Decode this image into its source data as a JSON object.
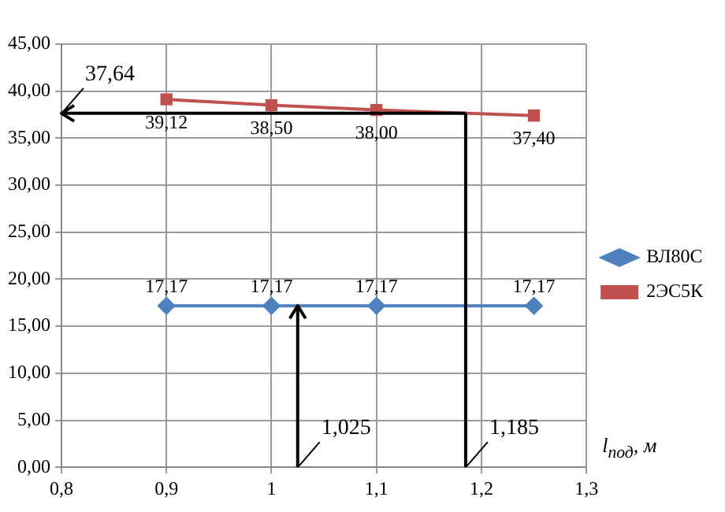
{
  "chart_data": {
    "type": "line",
    "xlabel": "l$_{под}$, м",
    "xlim": [
      0.8,
      1.3
    ],
    "xticks": [
      {
        "value": 0.8,
        "label": "0,8"
      },
      {
        "value": 0.9,
        "label": "0,9"
      },
      {
        "value": 1,
        "label": "1"
      },
      {
        "value": 1.1,
        "label": "1,1"
      },
      {
        "value": 1.2,
        "label": "1,2"
      },
      {
        "value": 1.3,
        "label": "1,3"
      }
    ],
    "ylim": [
      0,
      45
    ],
    "yticks": [
      {
        "value": 0,
        "label": "0,00"
      },
      {
        "value": 5,
        "label": "5,00"
      },
      {
        "value": 10,
        "label": "10,00"
      },
      {
        "value": 15,
        "label": "15,00"
      },
      {
        "value": 20,
        "label": "20,00"
      },
      {
        "value": 25,
        "label": "25,00"
      },
      {
        "value": 30,
        "label": "30,00"
      },
      {
        "value": 35,
        "label": "35,00"
      },
      {
        "value": 40,
        "label": "40,00"
      },
      {
        "value": 45,
        "label": "45,00"
      }
    ],
    "x": [
      0.9,
      1,
      1.1,
      1.25
    ],
    "series": [
      {
        "name": "ВЛ80С",
        "color": "#4f81bd",
        "marker": "diamond",
        "values": [
          17.17,
          17.17,
          17.17,
          17.17
        ],
        "value_labels": [
          "17,17",
          "17,17",
          "17,17",
          "17,17"
        ]
      },
      {
        "name": "2ЭС5К",
        "color": "#c0504d",
        "marker": "square",
        "values": [
          39.12,
          38.5,
          38.0,
          37.4
        ],
        "value_labels": [
          "39,12",
          "38,50",
          "38,00",
          "37,40"
        ]
      }
    ],
    "ref_lines": [
      {
        "axis": "y",
        "value": 37.64,
        "label": "37,64",
        "color": "#000000"
      },
      {
        "axis": "x",
        "value": 1.025,
        "label": "1,025",
        "color": "#000000"
      },
      {
        "axis": "x",
        "value": 1.185,
        "label": "1,185",
        "color": "#000000"
      }
    ],
    "grid": true,
    "legend": "right"
  }
}
